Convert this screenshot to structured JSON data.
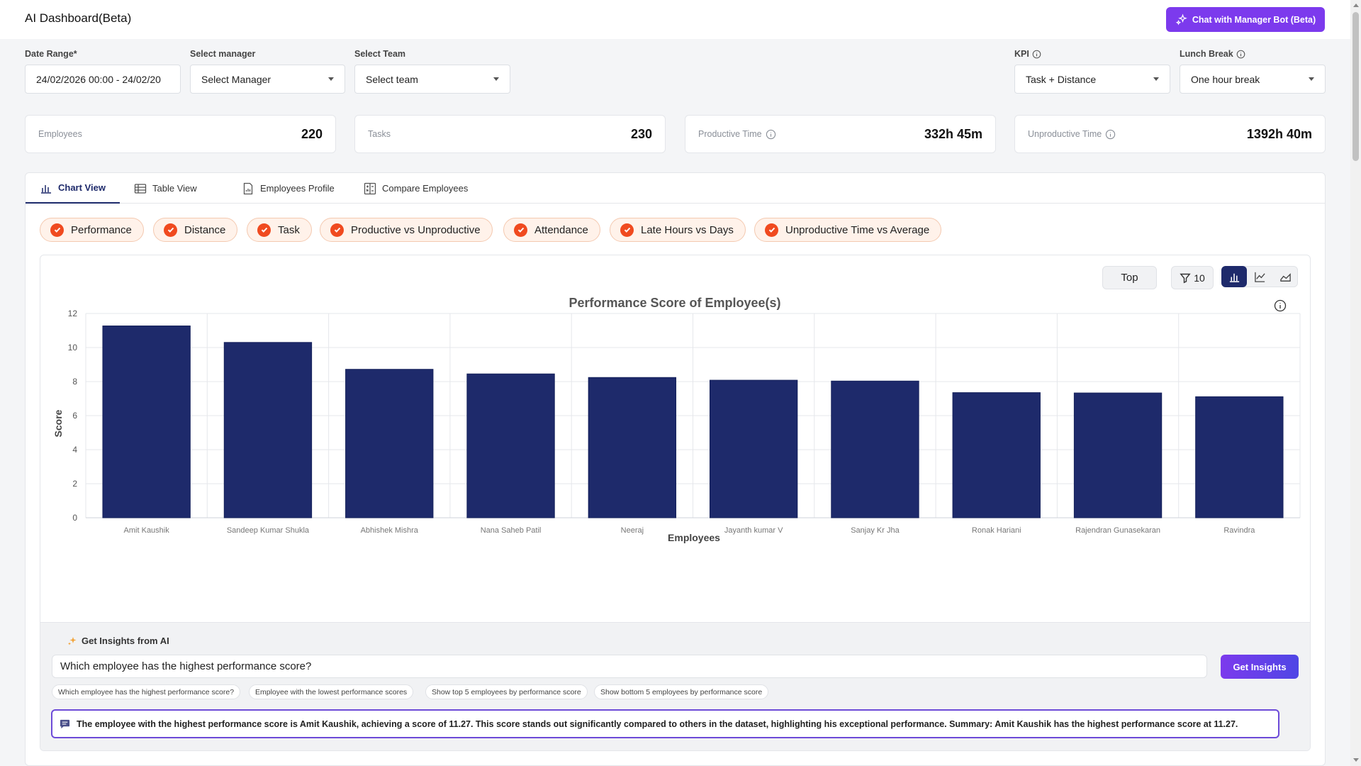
{
  "header": {
    "title": "AI Dashboard(Beta)",
    "bot_button": "Chat with Manager Bot (Beta)"
  },
  "filters": {
    "date_range": {
      "label": "Date Range*",
      "value": "24/02/2026 00:00 - 24/02/20"
    },
    "manager": {
      "label": "Select manager",
      "value": "Select Manager"
    },
    "team": {
      "label": "Select Team",
      "value": "Select team"
    },
    "kpi": {
      "label": "KPI",
      "value": "Task + Distance"
    },
    "lunch": {
      "label": "Lunch Break",
      "value": "One hour break"
    }
  },
  "stats": {
    "employees": {
      "label": "Employees",
      "value": "220"
    },
    "tasks": {
      "label": "Tasks",
      "value": "230"
    },
    "productive": {
      "label": "Productive Time",
      "value": "332h 45m"
    },
    "unproductive": {
      "label": "Unproductive Time",
      "value": "1392h 40m"
    }
  },
  "tabs": [
    "Chart View",
    "Table View",
    "Employees Profile",
    "Compare Employees"
  ],
  "chips": [
    "Performance",
    "Distance",
    "Task",
    "Productive vs Unproductive",
    "Attendance",
    "Late Hours vs Days",
    "Unproductive Time vs Average"
  ],
  "controls": {
    "top_label": "Top",
    "filter_count": "10"
  },
  "chart_data": {
    "type": "bar",
    "title": "Performance Score of Employee(s)",
    "xlabel": "Employees",
    "ylabel": "Score",
    "ylim": [
      0,
      12
    ],
    "yticks": [
      0,
      2,
      4,
      6,
      8,
      10,
      12
    ],
    "categories": [
      "Amit Kaushik",
      "Sandeep Kumar Shukla",
      "Abhishek Mishra",
      "Nana Saheb Patil",
      "Neeraj",
      "Jayanth kumar V",
      "Sanjay Kr Jha",
      "Ronak Hariani",
      "Rajendran Gunasekaran",
      "Ravindra"
    ],
    "values": [
      11.27,
      10.3,
      8.72,
      8.45,
      8.24,
      8.08,
      8.03,
      7.35,
      7.33,
      7.11
    ],
    "bar_color": "#1e2a6b",
    "grid": true
  },
  "insights": {
    "title": "Get Insights from AI",
    "query": "Which employee has the highest performance score?",
    "button": "Get Insights",
    "suggestions": [
      "Which employee has the highest performance score?",
      "Employee with the lowest performance scores",
      "Show top 5 employees by performance score",
      "Show bottom 5 employees by performance score"
    ],
    "answer": "The employee with the highest performance score is Amit Kaushik, achieving a score of 11.27. This score stands out significantly compared to others in the dataset, highlighting his exceptional performance. Summary: Amit Kaushik has the highest performance score at 11.27."
  },
  "colors": {
    "accent": "#7c3aed",
    "navy": "#1e2a6b",
    "chip_check": "#f04a1f"
  }
}
